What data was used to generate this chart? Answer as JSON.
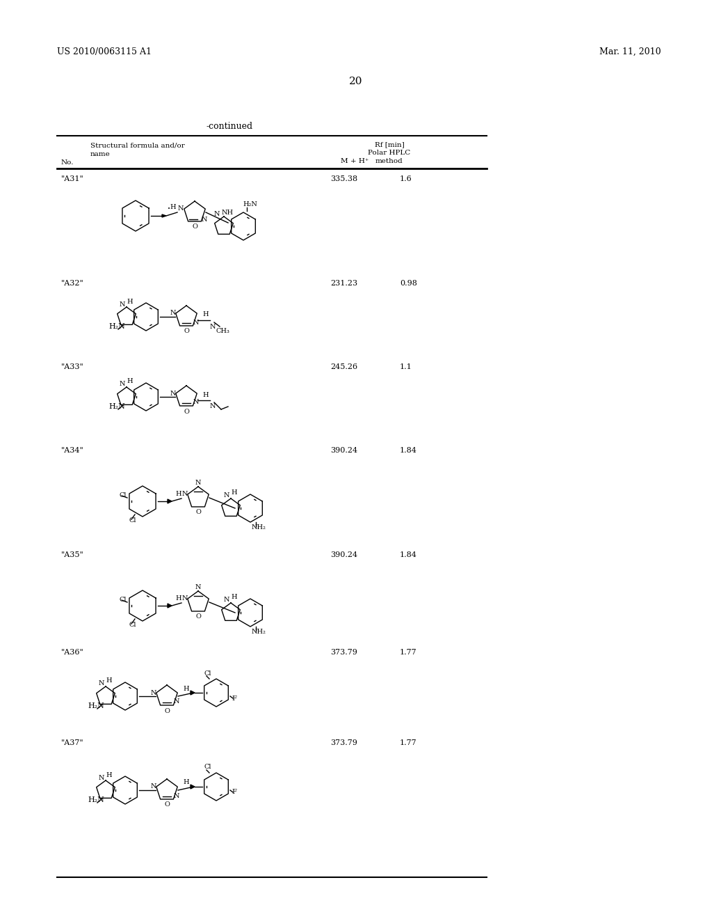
{
  "patent_number": "US 2010/0063115 A1",
  "date": "Mar. 11, 2010",
  "page_number": "20",
  "continued_label": "-continued",
  "col_headers": {
    "structural": "Structural formula and/or",
    "name": "name",
    "no": "No.",
    "mh": "M + H⁺",
    "rf": "Rf [min]\nPolar HPLC\nmethod"
  },
  "rows": [
    {
      "no": "\"A31\"",
      "mh": "335.38",
      "rf": "1.6"
    },
    {
      "no": "\"A32\"",
      "mh": "231.23",
      "rf": "0.98"
    },
    {
      "no": "\"A33\"",
      "mh": "245.26",
      "rf": "1.1"
    },
    {
      "no": "\"A34\"",
      "mh": "390.24",
      "rf": "1.84"
    },
    {
      "no": "\"A35\"",
      "mh": "390.24",
      "rf": "1.84"
    },
    {
      "no": "\"A36\"",
      "mh": "373.79",
      "rf": "1.77"
    },
    {
      "no": "\"A37\"",
      "mh": "373.79",
      "rf": "1.77"
    }
  ],
  "bg_color": "#ffffff",
  "text_color": "#000000",
  "font_size_header": 8,
  "font_size_body": 8,
  "font_size_page": 10,
  "font_size_patent": 9
}
